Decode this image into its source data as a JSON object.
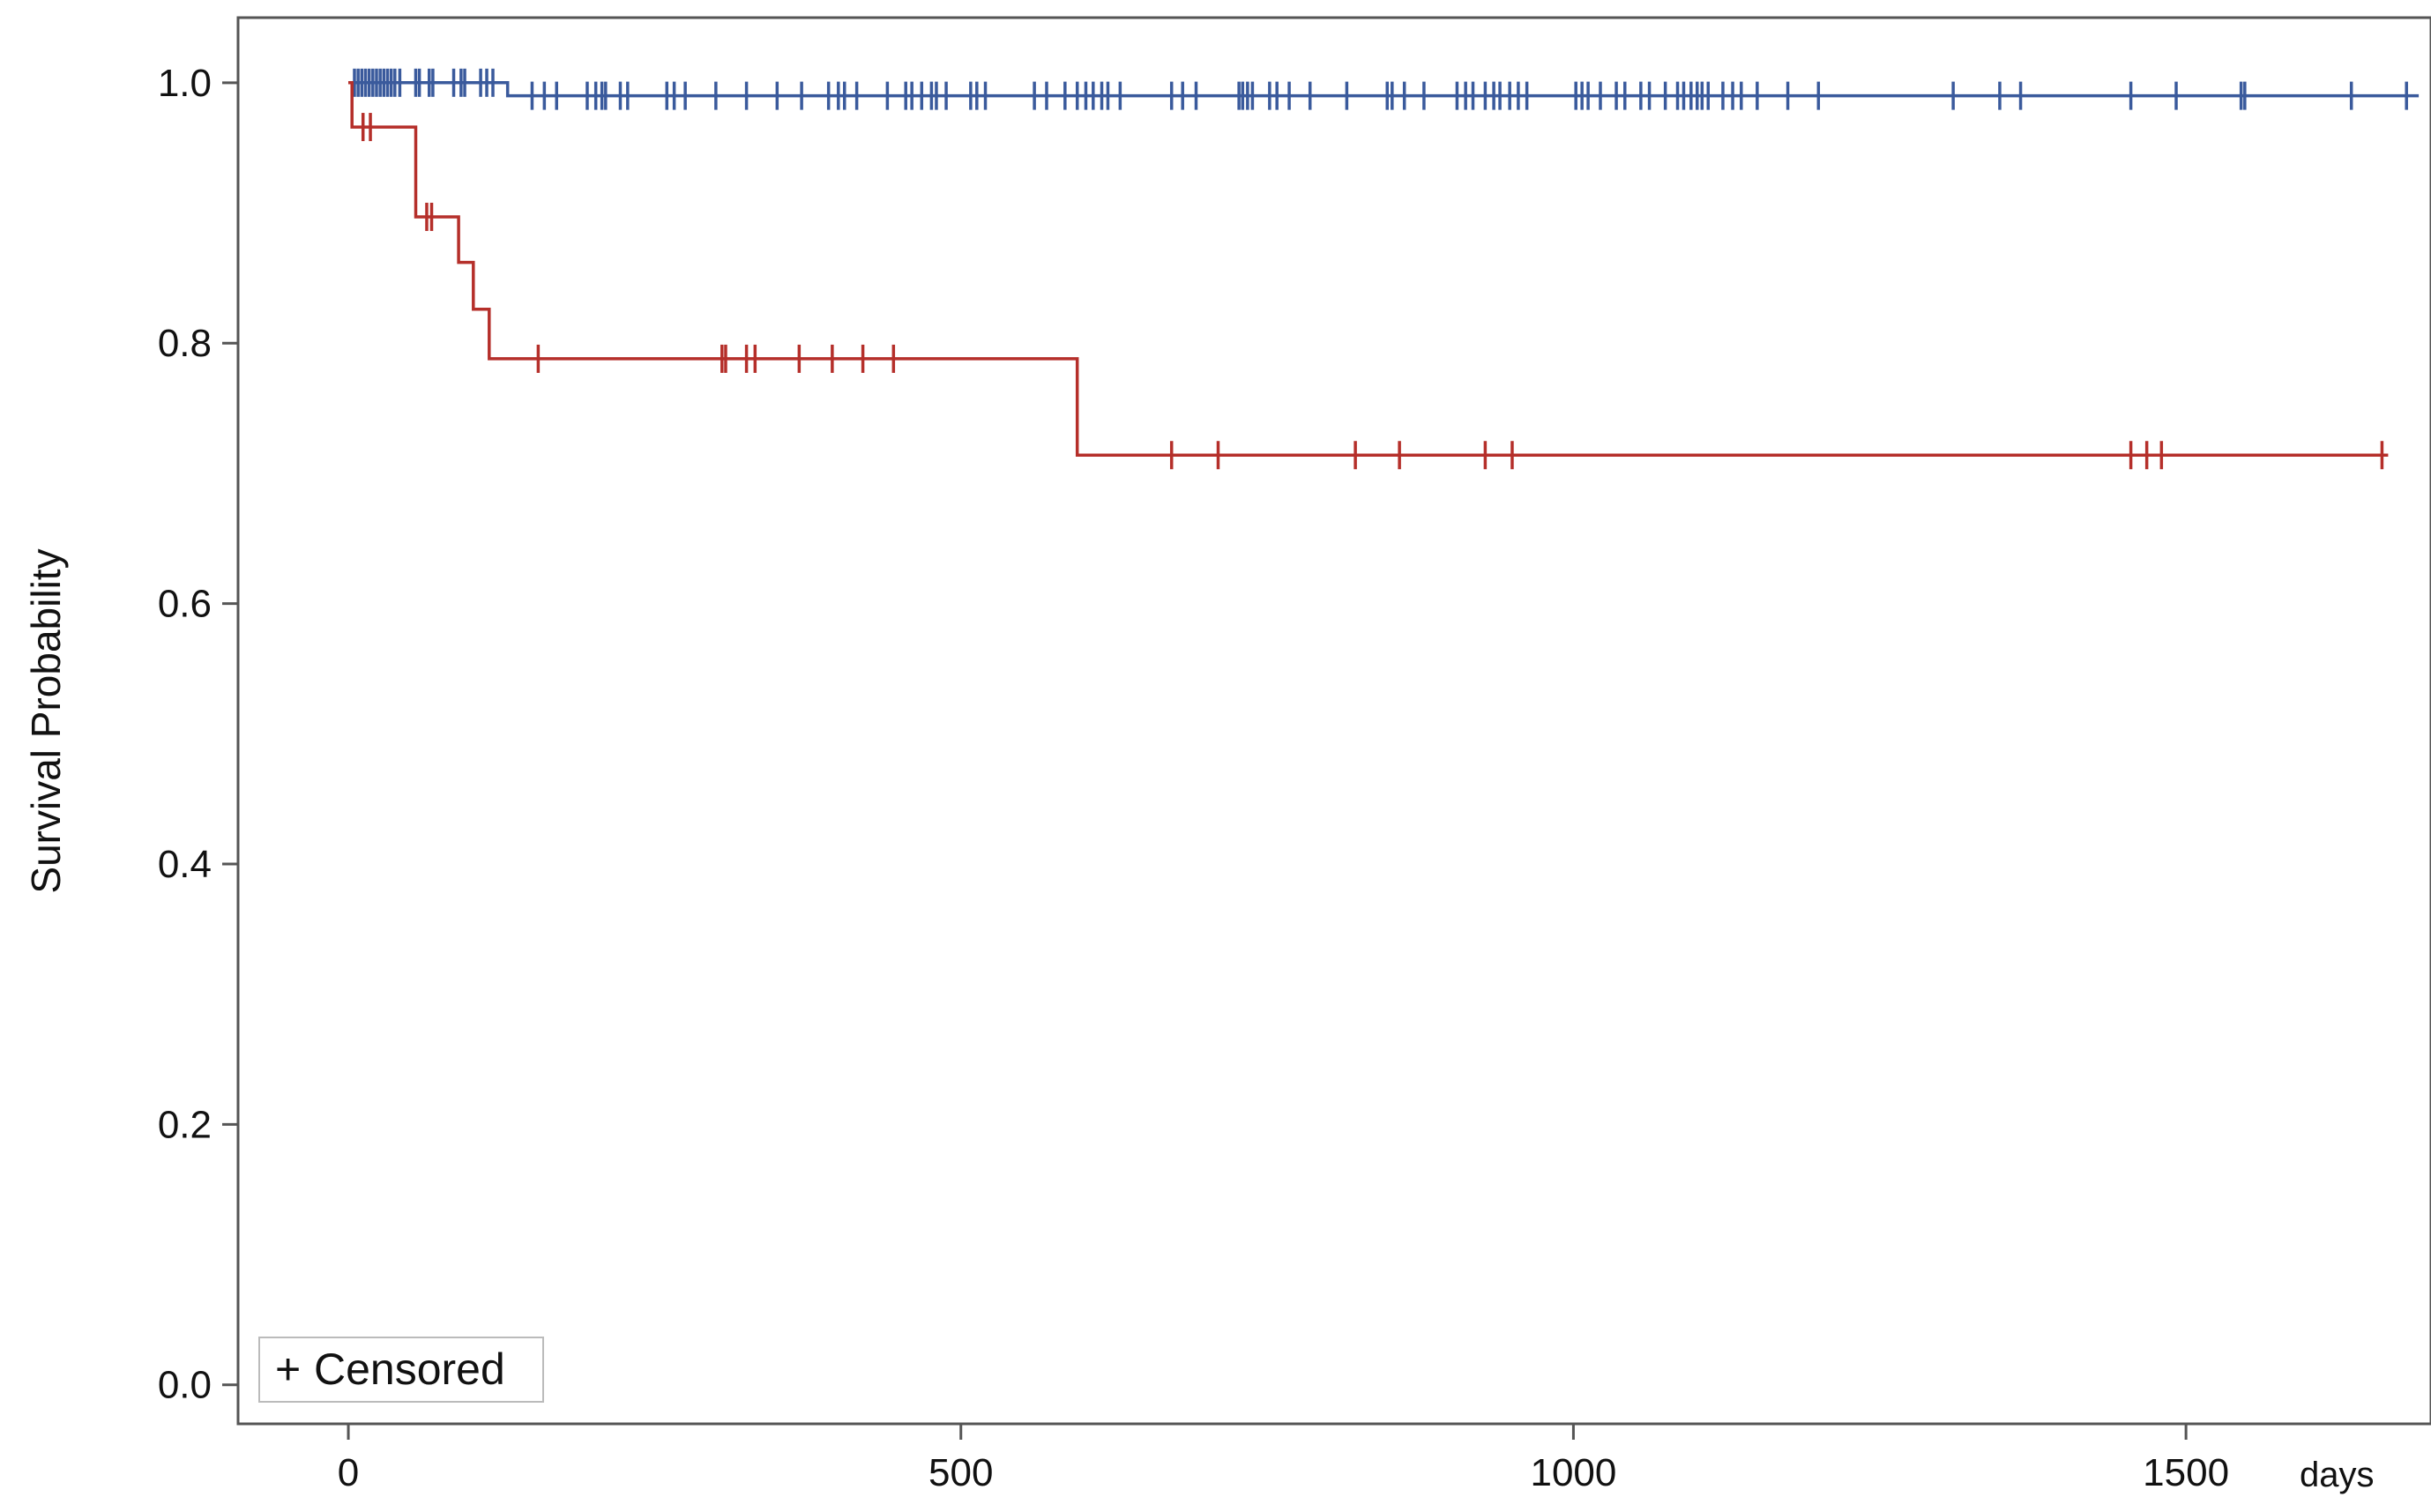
{
  "chart_data": {
    "type": "line",
    "title": "",
    "xlabel": "",
    "x_unit_label": "days",
    "ylabel": "Survival Probability",
    "xlim": [
      -90,
      1700
    ],
    "ylim": [
      -0.03,
      1.05
    ],
    "x_ticks": [
      0,
      500,
      1000,
      1500
    ],
    "x_tick_labels": [
      "0",
      "500",
      "1000",
      "1500"
    ],
    "y_ticks": [
      0.0,
      0.2,
      0.4,
      0.6,
      0.8,
      1.0
    ],
    "y_tick_labels": [
      "0.0",
      "0.2",
      "0.4",
      "0.6",
      "0.8",
      "1.0"
    ],
    "grid": false,
    "legend": {
      "placement": "bottom-left",
      "symbol": "+",
      "label": "Censored"
    },
    "series": [
      {
        "color": "#3a5a9c",
        "end_x": 1690,
        "steps": [
          {
            "x": 0,
            "y": 1.0
          },
          {
            "x": 130,
            "y": 0.99
          }
        ],
        "censored": [
          {
            "x": 5,
            "y": 1.0
          },
          {
            "x": 8,
            "y": 1.0
          },
          {
            "x": 11,
            "y": 1.0
          },
          {
            "x": 14,
            "y": 1.0
          },
          {
            "x": 17,
            "y": 1.0
          },
          {
            "x": 20,
            "y": 1.0
          },
          {
            "x": 23,
            "y": 1.0
          },
          {
            "x": 26,
            "y": 1.0
          },
          {
            "x": 29,
            "y": 1.0
          },
          {
            "x": 32,
            "y": 1.0
          },
          {
            "x": 35,
            "y": 1.0
          },
          {
            "x": 38,
            "y": 1.0
          },
          {
            "x": 42,
            "y": 1.0
          },
          {
            "x": 55,
            "y": 1.0
          },
          {
            "x": 58,
            "y": 1.0
          },
          {
            "x": 66,
            "y": 1.0
          },
          {
            "x": 69,
            "y": 1.0
          },
          {
            "x": 86,
            "y": 1.0
          },
          {
            "x": 92,
            "y": 1.0
          },
          {
            "x": 95,
            "y": 1.0
          },
          {
            "x": 108,
            "y": 1.0
          },
          {
            "x": 113,
            "y": 1.0
          },
          {
            "x": 118,
            "y": 1.0
          },
          {
            "x": 150,
            "y": 0.99
          },
          {
            "x": 160,
            "y": 0.99
          },
          {
            "x": 170,
            "y": 0.99
          },
          {
            "x": 195,
            "y": 0.99
          },
          {
            "x": 202,
            "y": 0.99
          },
          {
            "x": 207,
            "y": 0.99
          },
          {
            "x": 210,
            "y": 0.99
          },
          {
            "x": 222,
            "y": 0.99
          },
          {
            "x": 228,
            "y": 0.99
          },
          {
            "x": 260,
            "y": 0.99
          },
          {
            "x": 266,
            "y": 0.99
          },
          {
            "x": 275,
            "y": 0.99
          },
          {
            "x": 300,
            "y": 0.99
          },
          {
            "x": 325,
            "y": 0.99
          },
          {
            "x": 350,
            "y": 0.99
          },
          {
            "x": 370,
            "y": 0.99
          },
          {
            "x": 392,
            "y": 0.99
          },
          {
            "x": 400,
            "y": 0.99
          },
          {
            "x": 405,
            "y": 0.99
          },
          {
            "x": 415,
            "y": 0.99
          },
          {
            "x": 440,
            "y": 0.99
          },
          {
            "x": 455,
            "y": 0.99
          },
          {
            "x": 460,
            "y": 0.99
          },
          {
            "x": 468,
            "y": 0.99
          },
          {
            "x": 476,
            "y": 0.99
          },
          {
            "x": 480,
            "y": 0.99
          },
          {
            "x": 488,
            "y": 0.99
          },
          {
            "x": 508,
            "y": 0.99
          },
          {
            "x": 513,
            "y": 0.99
          },
          {
            "x": 520,
            "y": 0.99
          },
          {
            "x": 560,
            "y": 0.99
          },
          {
            "x": 570,
            "y": 0.99
          },
          {
            "x": 585,
            "y": 0.99
          },
          {
            "x": 595,
            "y": 0.99
          },
          {
            "x": 602,
            "y": 0.99
          },
          {
            "x": 608,
            "y": 0.99
          },
          {
            "x": 615,
            "y": 0.99
          },
          {
            "x": 620,
            "y": 0.99
          },
          {
            "x": 630,
            "y": 0.99
          },
          {
            "x": 672,
            "y": 0.99
          },
          {
            "x": 681,
            "y": 0.99
          },
          {
            "x": 692,
            "y": 0.99
          },
          {
            "x": 727,
            "y": 0.99
          },
          {
            "x": 730,
            "y": 0.99
          },
          {
            "x": 734,
            "y": 0.99
          },
          {
            "x": 738,
            "y": 0.99
          },
          {
            "x": 752,
            "y": 0.99
          },
          {
            "x": 758,
            "y": 0.99
          },
          {
            "x": 768,
            "y": 0.99
          },
          {
            "x": 785,
            "y": 0.99
          },
          {
            "x": 815,
            "y": 0.99
          },
          {
            "x": 848,
            "y": 0.99
          },
          {
            "x": 852,
            "y": 0.99
          },
          {
            "x": 862,
            "y": 0.99
          },
          {
            "x": 878,
            "y": 0.99
          },
          {
            "x": 905,
            "y": 0.99
          },
          {
            "x": 912,
            "y": 0.99
          },
          {
            "x": 918,
            "y": 0.99
          },
          {
            "x": 928,
            "y": 0.99
          },
          {
            "x": 935,
            "y": 0.99
          },
          {
            "x": 940,
            "y": 0.99
          },
          {
            "x": 948,
            "y": 0.99
          },
          {
            "x": 955,
            "y": 0.99
          },
          {
            "x": 962,
            "y": 0.99
          },
          {
            "x": 1002,
            "y": 0.99
          },
          {
            "x": 1007,
            "y": 0.99
          },
          {
            "x": 1012,
            "y": 0.99
          },
          {
            "x": 1022,
            "y": 0.99
          },
          {
            "x": 1035,
            "y": 0.99
          },
          {
            "x": 1042,
            "y": 0.99
          },
          {
            "x": 1055,
            "y": 0.99
          },
          {
            "x": 1062,
            "y": 0.99
          },
          {
            "x": 1075,
            "y": 0.99
          },
          {
            "x": 1085,
            "y": 0.99
          },
          {
            "x": 1090,
            "y": 0.99
          },
          {
            "x": 1096,
            "y": 0.99
          },
          {
            "x": 1101,
            "y": 0.99
          },
          {
            "x": 1105,
            "y": 0.99
          },
          {
            "x": 1110,
            "y": 0.99
          },
          {
            "x": 1122,
            "y": 0.99
          },
          {
            "x": 1130,
            "y": 0.99
          },
          {
            "x": 1137,
            "y": 0.99
          },
          {
            "x": 1150,
            "y": 0.99
          },
          {
            "x": 1175,
            "y": 0.99
          },
          {
            "x": 1200,
            "y": 0.99
          },
          {
            "x": 1310,
            "y": 0.99
          },
          {
            "x": 1348,
            "y": 0.99
          },
          {
            "x": 1365,
            "y": 0.99
          },
          {
            "x": 1455,
            "y": 0.99
          },
          {
            "x": 1492,
            "y": 0.99
          },
          {
            "x": 1545,
            "y": 0.99
          },
          {
            "x": 1548,
            "y": 0.99
          },
          {
            "x": 1635,
            "y": 0.99
          },
          {
            "x": 1680,
            "y": 0.99
          }
        ]
      },
      {
        "color": "#b52f2a",
        "end_x": 1665,
        "steps": [
          {
            "x": 0,
            "y": 1.0
          },
          {
            "x": 3,
            "y": 0.966
          },
          {
            "x": 55,
            "y": 0.897
          },
          {
            "x": 90,
            "y": 0.862
          },
          {
            "x": 102,
            "y": 0.826
          },
          {
            "x": 115,
            "y": 0.788
          },
          {
            "x": 595,
            "y": 0.714
          }
        ],
        "censored": [
          {
            "x": 12,
            "y": 0.966
          },
          {
            "x": 18,
            "y": 0.966
          },
          {
            "x": 64,
            "y": 0.897
          },
          {
            "x": 68,
            "y": 0.897
          },
          {
            "x": 155,
            "y": 0.788
          },
          {
            "x": 305,
            "y": 0.788
          },
          {
            "x": 308,
            "y": 0.788
          },
          {
            "x": 325,
            "y": 0.788
          },
          {
            "x": 332,
            "y": 0.788
          },
          {
            "x": 368,
            "y": 0.788
          },
          {
            "x": 395,
            "y": 0.788
          },
          {
            "x": 420,
            "y": 0.788
          },
          {
            "x": 445,
            "y": 0.788
          },
          {
            "x": 672,
            "y": 0.714
          },
          {
            "x": 710,
            "y": 0.714
          },
          {
            "x": 822,
            "y": 0.714
          },
          {
            "x": 858,
            "y": 0.714
          },
          {
            "x": 928,
            "y": 0.714
          },
          {
            "x": 950,
            "y": 0.714
          },
          {
            "x": 1455,
            "y": 0.714
          },
          {
            "x": 1468,
            "y": 0.714
          },
          {
            "x": 1480,
            "y": 0.714
          },
          {
            "x": 1660,
            "y": 0.714
          }
        ]
      }
    ]
  }
}
